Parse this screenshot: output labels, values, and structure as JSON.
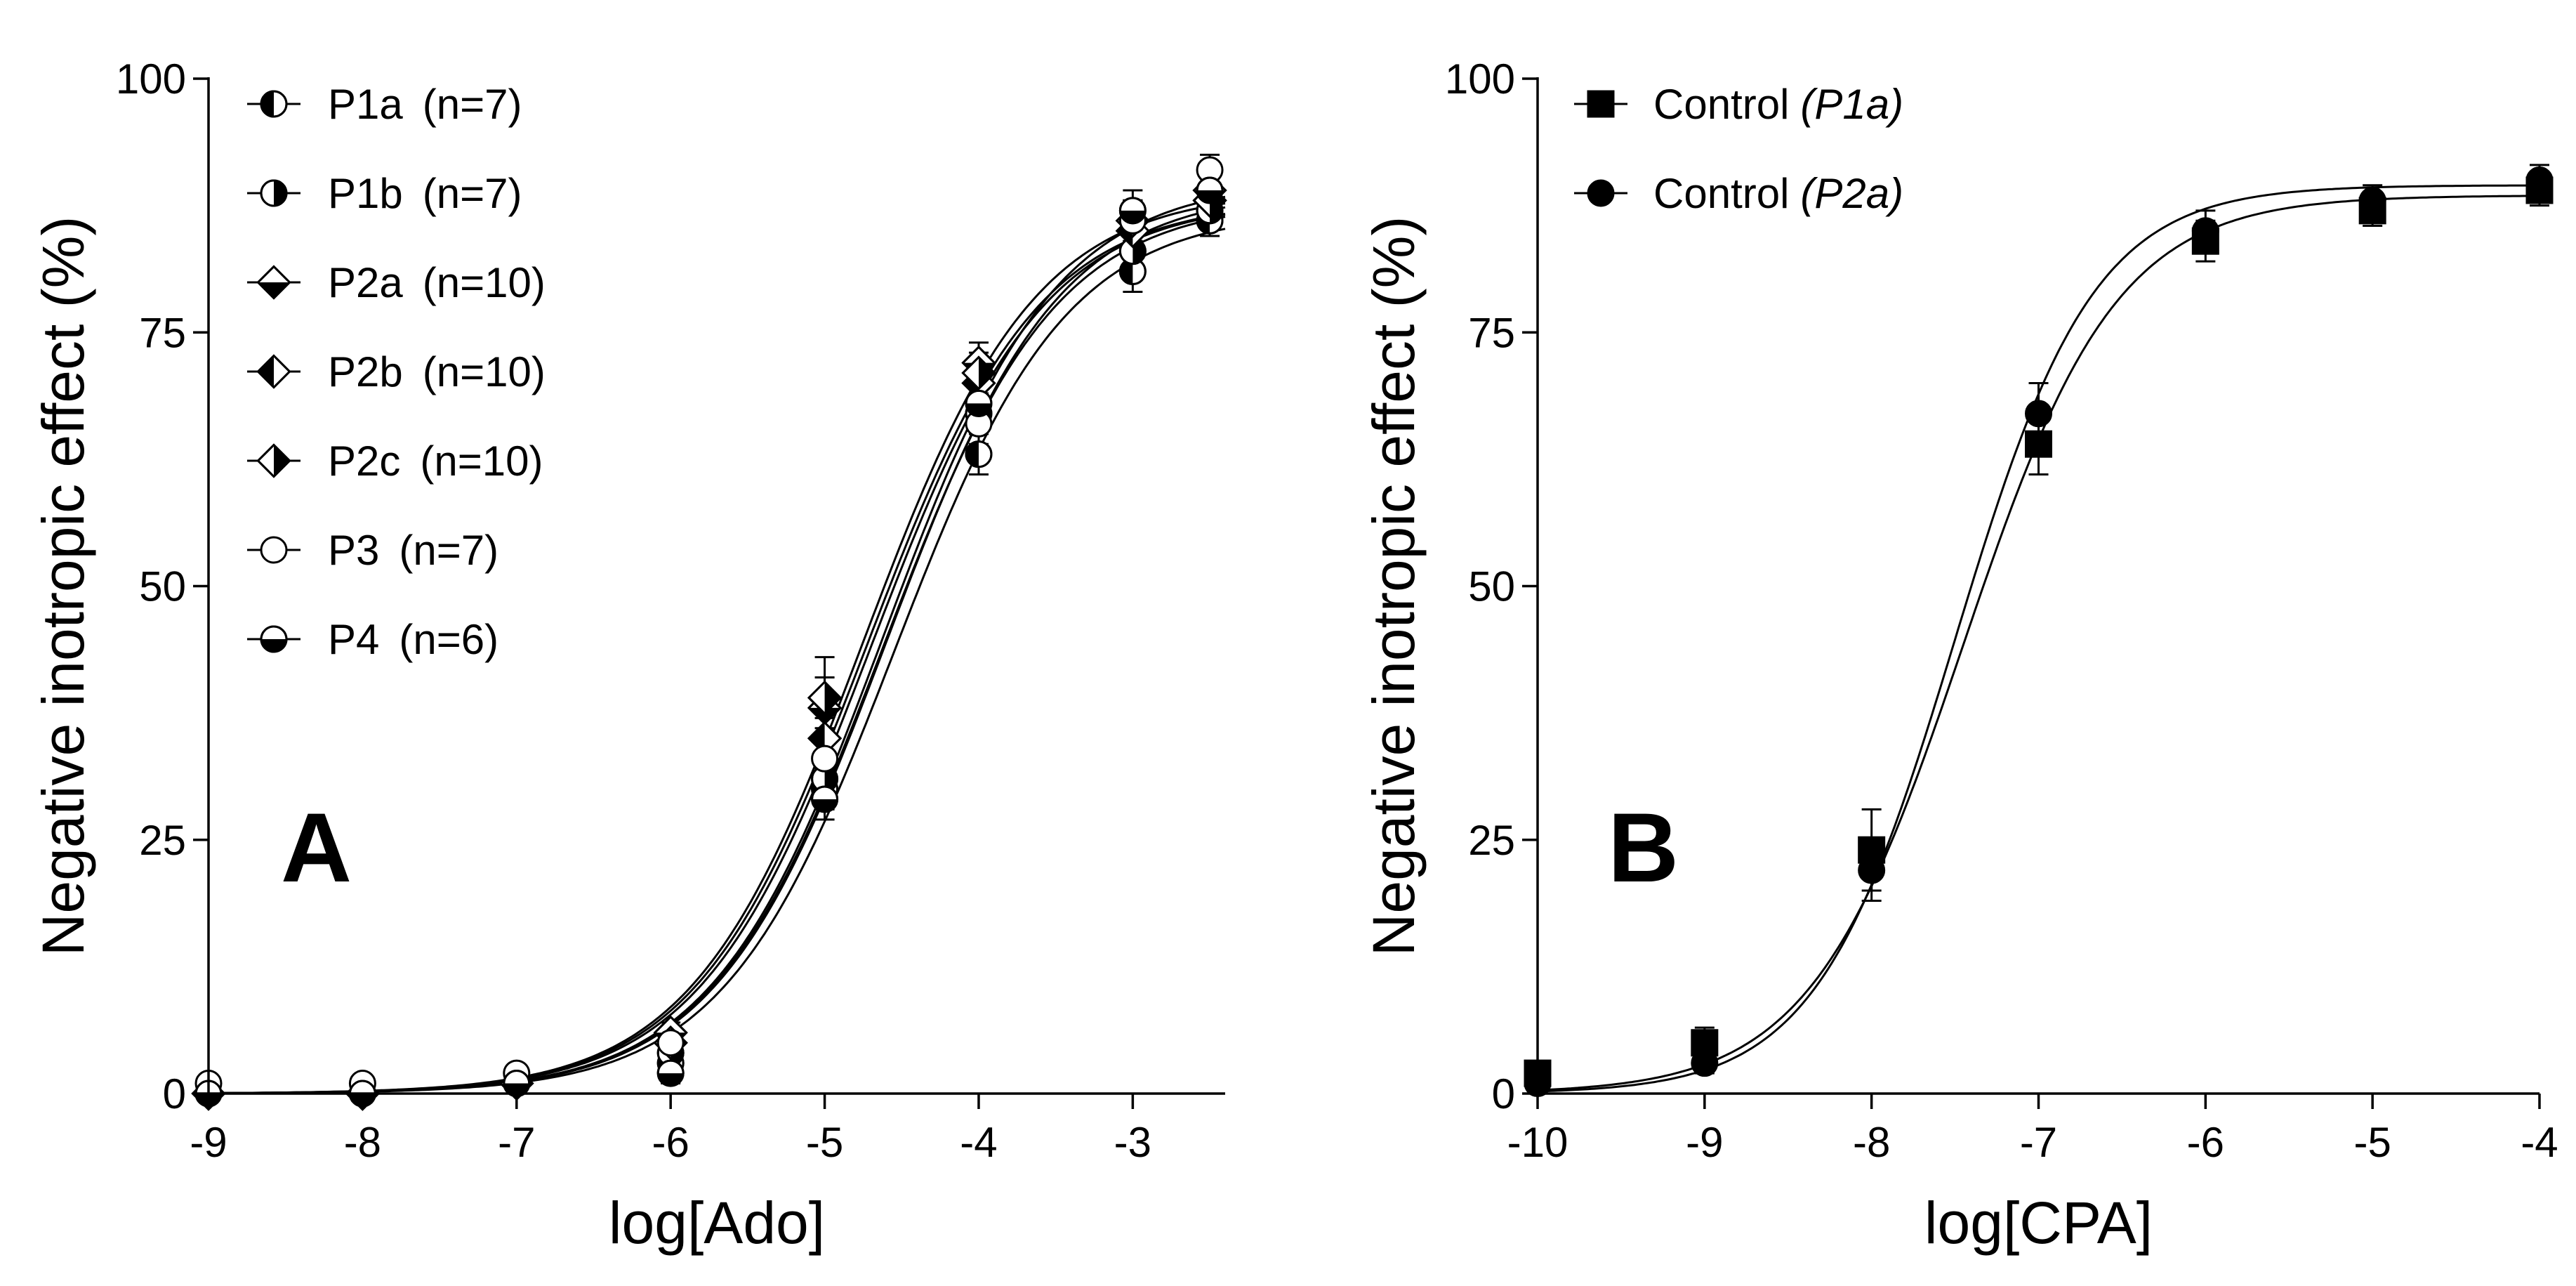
{
  "chart_data": [
    {
      "type": "scatter",
      "panel_label": "A",
      "title": "",
      "xlabel": "log[Ado]",
      "ylabel": "Negative inotropic effect (%)",
      "xlim": [
        -9,
        -2.4
      ],
      "ylim": [
        0,
        100
      ],
      "xticks": [
        -9,
        -8,
        -7,
        -6,
        -5,
        -4,
        -3
      ],
      "yticks": [
        0,
        25,
        50,
        75,
        100
      ],
      "x": [
        -9,
        -8,
        -7,
        -6,
        -5,
        -4,
        -3,
        -2.5
      ],
      "legend_position": "top-left",
      "series": [
        {
          "name": "P1a",
          "n_label": "(n=7)",
          "marker": "circle-half-left",
          "values": [
            0,
            0,
            1,
            3,
            30,
            63,
            81,
            86
          ],
          "errors": [
            0,
            0,
            0.5,
            1,
            2,
            2,
            2,
            1.5
          ],
          "fit": {
            "bottom": 0,
            "top": 87,
            "logEC50": -4.55,
            "hill": 0.78
          }
        },
        {
          "name": "P1b",
          "n_label": "(n=7)",
          "marker": "circle-half-right",
          "values": [
            0,
            0,
            1,
            4,
            31,
            67,
            83,
            87
          ],
          "errors": [
            0,
            0,
            0.5,
            1,
            2,
            2,
            2,
            1.5
          ],
          "fit": {
            "bottom": 0,
            "top": 88,
            "logEC50": -4.62,
            "hill": 0.78
          }
        },
        {
          "name": "P2a",
          "n_label": "(n=10)",
          "marker": "diamond-half-bottom",
          "values": [
            0,
            0,
            1,
            6,
            38,
            72,
            86,
            89
          ],
          "errors": [
            0,
            0,
            0.5,
            1,
            3,
            2,
            2,
            1.5
          ],
          "fit": {
            "bottom": 0,
            "top": 89,
            "logEC50": -4.75,
            "hill": 0.78
          }
        },
        {
          "name": "P2b",
          "n_label": "(n=10)",
          "marker": "diamond-half-left",
          "values": [
            0,
            0,
            1,
            5,
            35,
            70,
            85,
            88
          ],
          "errors": [
            0,
            0,
            0.5,
            1,
            2,
            2,
            2,
            1.5
          ],
          "fit": {
            "bottom": 0,
            "top": 88,
            "logEC50": -4.7,
            "hill": 0.78
          }
        },
        {
          "name": "P2c",
          "n_label": "(n=10)",
          "marker": "diamond-half-right",
          "values": [
            0,
            0,
            1,
            5,
            39,
            71,
            86,
            88
          ],
          "errors": [
            0,
            0,
            0.5,
            1,
            4,
            2,
            2,
            1.5
          ],
          "fit": {
            "bottom": 0,
            "top": 88,
            "logEC50": -4.73,
            "hill": 0.78
          }
        },
        {
          "name": "P3",
          "n_label": "(n=7)",
          "marker": "circle-open",
          "values": [
            1,
            1,
            2,
            5,
            33,
            66,
            86,
            91
          ],
          "errors": [
            0,
            0.5,
            0.5,
            1,
            3,
            2,
            2,
            1.5
          ],
          "fit": {
            "bottom": 0,
            "top": 90,
            "logEC50": -4.62,
            "hill": 0.78
          }
        },
        {
          "name": "P4",
          "n_label": "(n=6)",
          "marker": "circle-half-bottom",
          "values": [
            0,
            0,
            1,
            2,
            29,
            68,
            87,
            89
          ],
          "errors": [
            0,
            0,
            0.5,
            1,
            2,
            2,
            2,
            1.5
          ],
          "fit": {
            "bottom": 0,
            "top": 89,
            "logEC50": -4.6,
            "hill": 0.78
          }
        }
      ]
    },
    {
      "type": "scatter",
      "panel_label": "B",
      "title": "",
      "xlabel": "log[CPA]",
      "ylabel": "Negative inotropic effect (%)",
      "xlim": [
        -10,
        -4
      ],
      "ylim": [
        0,
        100
      ],
      "xticks": [
        -10,
        -9,
        -8,
        -7,
        -6,
        -5,
        -4
      ],
      "yticks": [
        0,
        25,
        50,
        75,
        100
      ],
      "x": [
        -10,
        -9,
        -8,
        -7,
        -6,
        -5,
        -4
      ],
      "legend_position": "top-left",
      "series": [
        {
          "name": "Control",
          "name_suffix": "(P1a)",
          "marker": "square-filled",
          "values": [
            2,
            5,
            24,
            64,
            84,
            87,
            89
          ],
          "errors": [
            1,
            1.5,
            4,
            3,
            2,
            1.5,
            1.5
          ],
          "fit": {
            "bottom": 0,
            "top": 88.5,
            "logEC50": -7.45,
            "hill": 0.95
          }
        },
        {
          "name": "Control",
          "name_suffix": "(P2a)",
          "marker": "circle-filled",
          "values": [
            1,
            3,
            22,
            67,
            85,
            88,
            90
          ],
          "errors": [
            0.5,
            1,
            3,
            3,
            2,
            1.5,
            1.5
          ],
          "fit": {
            "bottom": 0,
            "top": 89.5,
            "logEC50": -7.5,
            "hill": 1.05
          }
        }
      ]
    }
  ]
}
